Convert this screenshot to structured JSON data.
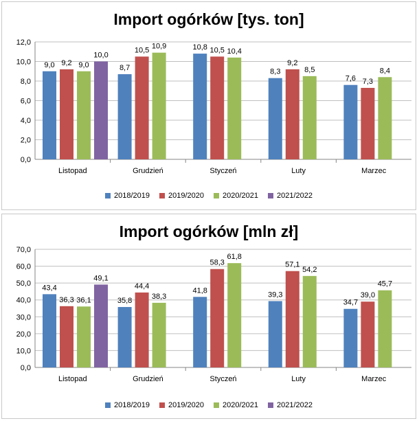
{
  "chart_data": [
    {
      "type": "bar",
      "title": "Import ogórków [tys. ton]",
      "categories": [
        "Listopad",
        "Grudzień",
        "Styczeń",
        "Luty",
        "Marzec"
      ],
      "ylim": [
        0,
        12
      ],
      "yticks": [
        "0,0",
        "2,0",
        "4,0",
        "6,0",
        "8,0",
        "10,0",
        "12,0"
      ],
      "grid": true,
      "legend": "bottom",
      "series": [
        {
          "name": "2018/2019",
          "color": "#4f81bd",
          "values": [
            9.0,
            8.7,
            10.8,
            8.3,
            7.6
          ],
          "labels": [
            "9,0",
            "8,7",
            "10,8",
            "8,3",
            "7,6"
          ]
        },
        {
          "name": "2019/2020",
          "color": "#c0504d",
          "values": [
            9.2,
            10.5,
            10.5,
            9.2,
            7.3
          ],
          "labels": [
            "9,2",
            "10,5",
            "10,5",
            "9,2",
            "7,3"
          ]
        },
        {
          "name": "2020/2021",
          "color": "#9bbb59",
          "values": [
            9.0,
            10.9,
            10.4,
            8.5,
            8.4
          ],
          "labels": [
            "9,0",
            "10,9",
            "10,4",
            "8,5",
            "8,4"
          ]
        },
        {
          "name": "2021/2022",
          "color": "#8064a2",
          "values": [
            10.0,
            null,
            null,
            null,
            null
          ],
          "labels": [
            "10,0",
            "",
            "",
            "",
            ""
          ]
        }
      ]
    },
    {
      "type": "bar",
      "title": "Import ogórków [mln zł]",
      "categories": [
        "Listopad",
        "Grudzień",
        "Styczeń",
        "Luty",
        "Marzec"
      ],
      "ylim": [
        0,
        70
      ],
      "yticks": [
        "0,0",
        "10,0",
        "20,0",
        "30,0",
        "40,0",
        "50,0",
        "60,0",
        "70,0"
      ],
      "grid": true,
      "legend": "bottom",
      "series": [
        {
          "name": "2018/2019",
          "color": "#4f81bd",
          "values": [
            43.4,
            35.8,
            41.8,
            39.3,
            34.7
          ],
          "labels": [
            "43,4",
            "35,8",
            "41,8",
            "39,3",
            "34,7"
          ]
        },
        {
          "name": "2019/2020",
          "color": "#c0504d",
          "values": [
            36.3,
            44.4,
            58.3,
            57.1,
            39.0
          ],
          "labels": [
            "36,3",
            "44,4",
            "58,3",
            "57,1",
            "39,0"
          ]
        },
        {
          "name": "2020/2021",
          "color": "#9bbb59",
          "values": [
            36.1,
            38.3,
            61.8,
            54.2,
            45.7
          ],
          "labels": [
            "36,1",
            "38,3",
            "61,8",
            "54,2",
            "45,7"
          ]
        },
        {
          "name": "2021/2022",
          "color": "#8064a2",
          "values": [
            49.1,
            null,
            null,
            null,
            null
          ],
          "labels": [
            "49,1",
            "",
            "",
            "",
            ""
          ]
        }
      ]
    }
  ]
}
